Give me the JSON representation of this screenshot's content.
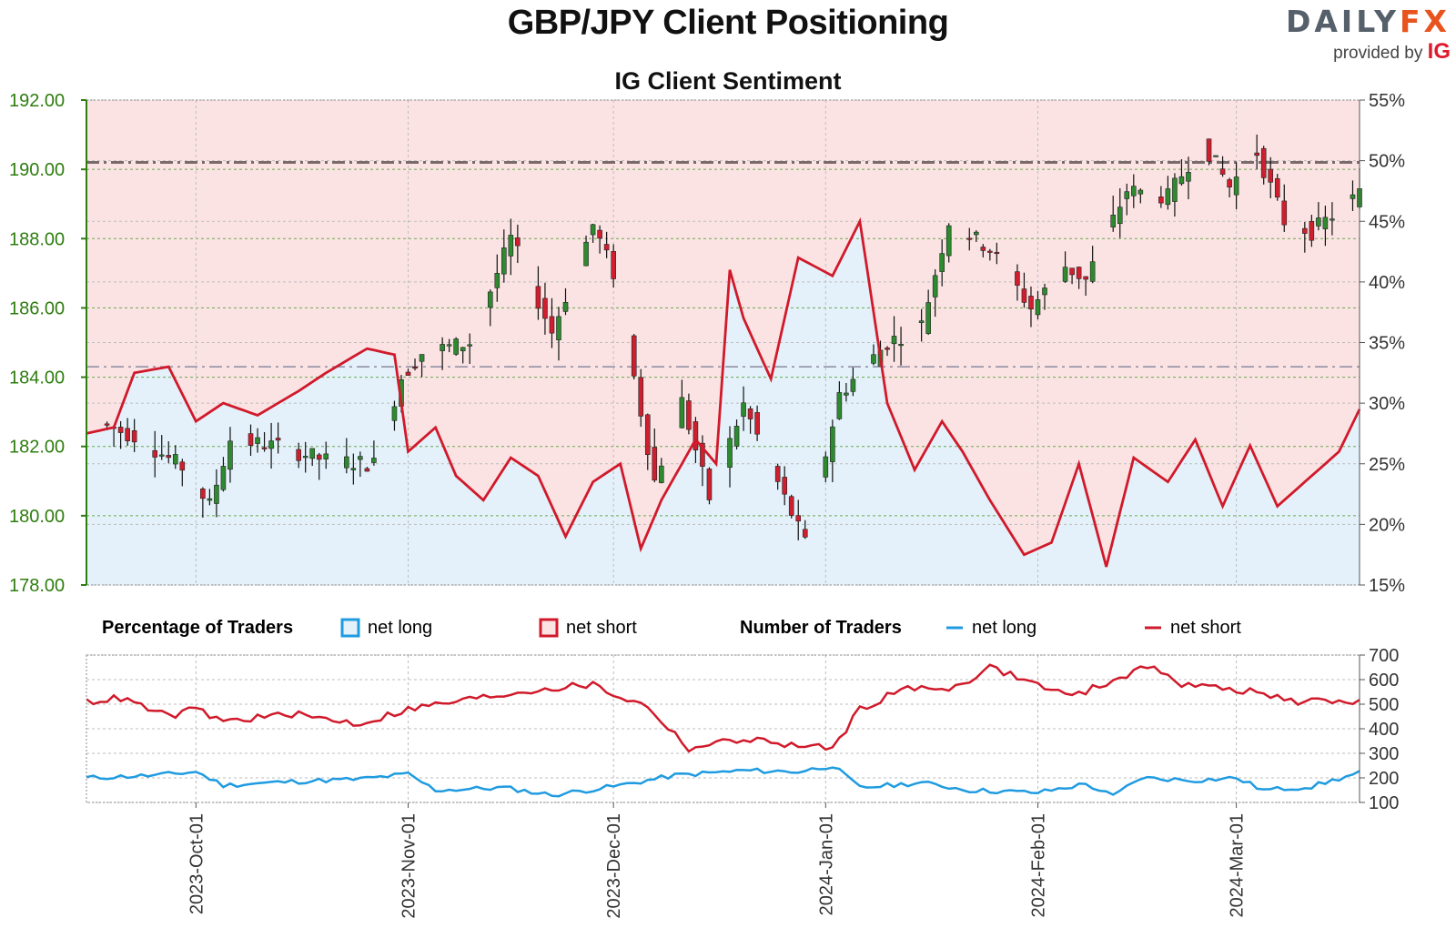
{
  "header": {
    "title": "GBP/JPY Client Positioning",
    "subtitle": "IG Client Sentiment",
    "logo_daily": "DAILY",
    "logo_fx": "FX",
    "logo_provided": "provided by",
    "logo_ig": "IG"
  },
  "legend": {
    "pct_heading": "Percentage of Traders",
    "pct_long": "net long",
    "pct_short": "net short",
    "num_heading": "Number of Traders",
    "num_long": "net long",
    "num_short": "net short"
  },
  "colors": {
    "long_line": "#1f9be0",
    "short_line": "#d01a2b",
    "long_fill": "#e4f1fa",
    "short_fill": "#fbe3e4",
    "bull_candle": "#2e8a2e",
    "bear_candle": "#cf1f2f",
    "price_axis": "#2e7d0f"
  },
  "chart_data": [
    {
      "type": "candlestick",
      "title": "GBP/JPY Client Positioning",
      "x_range": [
        "2023-09-15",
        "2024-03-19"
      ],
      "price_axis": {
        "ticks": [
          "178.00",
          "180.00",
          "182.00",
          "184.00",
          "186.00",
          "188.00",
          "190.00",
          "192.00"
        ],
        "ylim": [
          178,
          192
        ]
      },
      "pct_axis": {
        "ticks": [
          "15%",
          "20%",
          "25%",
          "30%",
          "35%",
          "40%",
          "45%",
          "50%",
          "55%"
        ],
        "ylim": [
          15,
          55
        ]
      },
      "x_ticks": [
        "2023-Oct-01",
        "2023-Nov-01",
        "2023-Dec-01",
        "2024-Jan-01",
        "2024-Feb-01",
        "2024-Mar-01"
      ],
      "reference_lines_price": [
        190.2,
        184.3
      ],
      "ohlc_keypoints": [
        {
          "date": "2023-09-15",
          "close": 182.8
        },
        {
          "date": "2023-09-22",
          "close": 182.3
        },
        {
          "date": "2023-09-29",
          "close": 181.4
        },
        {
          "date": "2023-10-03",
          "close": 180.3
        },
        {
          "date": "2023-10-06",
          "close": 182.2
        },
        {
          "date": "2023-10-13",
          "close": 182.0
        },
        {
          "date": "2023-10-20",
          "close": 181.6
        },
        {
          "date": "2023-10-27",
          "close": 181.5
        },
        {
          "date": "2023-10-31",
          "close": 184.0
        },
        {
          "date": "2023-11-03",
          "close": 184.7
        },
        {
          "date": "2023-11-10",
          "close": 185.0
        },
        {
          "date": "2023-11-16",
          "close": 188.0
        },
        {
          "date": "2023-11-22",
          "close": 185.3
        },
        {
          "date": "2023-11-28",
          "close": 188.4
        },
        {
          "date": "2023-12-01",
          "close": 187.0
        },
        {
          "date": "2023-12-07",
          "close": 181.0
        },
        {
          "date": "2023-12-11",
          "close": 183.3
        },
        {
          "date": "2023-12-15",
          "close": 180.5
        },
        {
          "date": "2023-12-20",
          "close": 183.2
        },
        {
          "date": "2023-12-26",
          "close": 180.5
        },
        {
          "date": "2023-12-29",
          "close": 179.2
        },
        {
          "date": "2024-01-03",
          "close": 183.5
        },
        {
          "date": "2024-01-10",
          "close": 185.0
        },
        {
          "date": "2024-01-15",
          "close": 185.5
        },
        {
          "date": "2024-01-19",
          "close": 188.5
        },
        {
          "date": "2024-01-25",
          "close": 187.7
        },
        {
          "date": "2024-01-31",
          "close": 186.0
        },
        {
          "date": "2024-02-05",
          "close": 187.2
        },
        {
          "date": "2024-02-08",
          "close": 186.8
        },
        {
          "date": "2024-02-14",
          "close": 189.4
        },
        {
          "date": "2024-02-20",
          "close": 189.2
        },
        {
          "date": "2024-02-25",
          "close": 190.8
        },
        {
          "date": "2024-02-29",
          "close": 189.5
        },
        {
          "date": "2024-03-04",
          "close": 190.5
        },
        {
          "date": "2024-03-08",
          "close": 188.5
        },
        {
          "date": "2024-03-12",
          "close": 188.2
        },
        {
          "date": "2024-03-19",
          "close": 189.3
        }
      ],
      "net_short_pct": [
        {
          "date": "2023-09-15",
          "value": 27.5
        },
        {
          "date": "2023-09-19",
          "value": 28.0
        },
        {
          "date": "2023-09-22",
          "value": 32.5
        },
        {
          "date": "2023-09-27",
          "value": 33.0
        },
        {
          "date": "2023-10-01",
          "value": 28.5
        },
        {
          "date": "2023-10-05",
          "value": 30.0
        },
        {
          "date": "2023-10-10",
          "value": 29.0
        },
        {
          "date": "2023-10-16",
          "value": 31.0
        },
        {
          "date": "2023-10-20",
          "value": 32.5
        },
        {
          "date": "2023-10-26",
          "value": 34.5
        },
        {
          "date": "2023-10-30",
          "value": 34.0
        },
        {
          "date": "2023-11-01",
          "value": 26.0
        },
        {
          "date": "2023-11-05",
          "value": 28.0
        },
        {
          "date": "2023-11-08",
          "value": 24.0
        },
        {
          "date": "2023-11-12",
          "value": 22.0
        },
        {
          "date": "2023-11-16",
          "value": 25.5
        },
        {
          "date": "2023-11-20",
          "value": 24.0
        },
        {
          "date": "2023-11-24",
          "value": 19.0
        },
        {
          "date": "2023-11-28",
          "value": 23.5
        },
        {
          "date": "2023-12-02",
          "value": 25.0
        },
        {
          "date": "2023-12-05",
          "value": 18.0
        },
        {
          "date": "2023-12-08",
          "value": 22.0
        },
        {
          "date": "2023-12-13",
          "value": 27.0
        },
        {
          "date": "2023-12-16",
          "value": 25.0
        },
        {
          "date": "2023-12-18",
          "value": 41.0
        },
        {
          "date": "2023-12-20",
          "value": 37.0
        },
        {
          "date": "2023-12-24",
          "value": 32.0
        },
        {
          "date": "2023-12-28",
          "value": 42.0
        },
        {
          "date": "2024-01-02",
          "value": 40.5
        },
        {
          "date": "2024-01-06",
          "value": 45.0
        },
        {
          "date": "2024-01-10",
          "value": 30.0
        },
        {
          "date": "2024-01-14",
          "value": 24.5
        },
        {
          "date": "2024-01-18",
          "value": 28.5
        },
        {
          "date": "2024-01-21",
          "value": 26.0
        },
        {
          "date": "2024-01-25",
          "value": 22.0
        },
        {
          "date": "2024-01-30",
          "value": 17.5
        },
        {
          "date": "2024-02-03",
          "value": 18.5
        },
        {
          "date": "2024-02-07",
          "value": 25.0
        },
        {
          "date": "2024-02-11",
          "value": 16.5
        },
        {
          "date": "2024-02-15",
          "value": 25.5
        },
        {
          "date": "2024-02-20",
          "value": 23.5
        },
        {
          "date": "2024-02-24",
          "value": 27.0
        },
        {
          "date": "2024-02-28",
          "value": 21.5
        },
        {
          "date": "2024-03-03",
          "value": 26.5
        },
        {
          "date": "2024-03-07",
          "value": 21.5
        },
        {
          "date": "2024-03-12",
          "value": 24.0
        },
        {
          "date": "2024-03-16",
          "value": 26.0
        },
        {
          "date": "2024-03-19",
          "value": 29.5
        }
      ]
    },
    {
      "type": "line",
      "title": "Number of Traders",
      "x_range": [
        "2023-09-15",
        "2024-03-19"
      ],
      "y_ticks": [
        "100",
        "200",
        "300",
        "400",
        "500",
        "600",
        "700"
      ],
      "ylim": [
        100,
        700
      ],
      "series": [
        {
          "name": "net long",
          "points": [
            {
              "date": "2023-09-15",
              "value": 200
            },
            {
              "date": "2023-09-25",
              "value": 210
            },
            {
              "date": "2023-10-01",
              "value": 225
            },
            {
              "date": "2023-10-05",
              "value": 170
            },
            {
              "date": "2023-10-15",
              "value": 185
            },
            {
              "date": "2023-10-25",
              "value": 195
            },
            {
              "date": "2023-11-01",
              "value": 215
            },
            {
              "date": "2023-11-05",
              "value": 150
            },
            {
              "date": "2023-11-15",
              "value": 160
            },
            {
              "date": "2023-11-22",
              "value": 130
            },
            {
              "date": "2023-12-01",
              "value": 165
            },
            {
              "date": "2023-12-10",
              "value": 210
            },
            {
              "date": "2023-12-20",
              "value": 230
            },
            {
              "date": "2023-12-28",
              "value": 225
            },
            {
              "date": "2024-01-02",
              "value": 250
            },
            {
              "date": "2024-01-06",
              "value": 160
            },
            {
              "date": "2024-01-15",
              "value": 180
            },
            {
              "date": "2024-01-22",
              "value": 150
            },
            {
              "date": "2024-02-01",
              "value": 140
            },
            {
              "date": "2024-02-08",
              "value": 175
            },
            {
              "date": "2024-02-12",
              "value": 125
            },
            {
              "date": "2024-02-16",
              "value": 200
            },
            {
              "date": "2024-02-24",
              "value": 190
            },
            {
              "date": "2024-03-01",
              "value": 200
            },
            {
              "date": "2024-03-05",
              "value": 150
            },
            {
              "date": "2024-03-12",
              "value": 165
            },
            {
              "date": "2024-03-19",
              "value": 220
            }
          ]
        },
        {
          "name": "net short",
          "points": [
            {
              "date": "2023-09-15",
              "value": 510
            },
            {
              "date": "2023-09-20",
              "value": 525
            },
            {
              "date": "2023-09-27",
              "value": 450
            },
            {
              "date": "2023-10-01",
              "value": 480
            },
            {
              "date": "2023-10-05",
              "value": 430
            },
            {
              "date": "2023-10-15",
              "value": 460
            },
            {
              "date": "2023-10-25",
              "value": 420
            },
            {
              "date": "2023-11-01",
              "value": 480
            },
            {
              "date": "2023-11-10",
              "value": 520
            },
            {
              "date": "2023-11-20",
              "value": 560
            },
            {
              "date": "2023-11-28",
              "value": 580
            },
            {
              "date": "2023-12-01",
              "value": 540
            },
            {
              "date": "2023-12-06",
              "value": 490
            },
            {
              "date": "2023-12-12",
              "value": 320
            },
            {
              "date": "2023-12-20",
              "value": 360
            },
            {
              "date": "2023-12-28",
              "value": 330
            },
            {
              "date": "2024-01-02",
              "value": 320
            },
            {
              "date": "2024-01-06",
              "value": 480
            },
            {
              "date": "2024-01-12",
              "value": 560
            },
            {
              "date": "2024-01-20",
              "value": 570
            },
            {
              "date": "2024-01-25",
              "value": 650
            },
            {
              "date": "2024-02-01",
              "value": 580
            },
            {
              "date": "2024-02-06",
              "value": 530
            },
            {
              "date": "2024-02-14",
              "value": 620
            },
            {
              "date": "2024-02-18",
              "value": 660
            },
            {
              "date": "2024-02-22",
              "value": 580
            },
            {
              "date": "2024-03-01",
              "value": 560
            },
            {
              "date": "2024-03-05",
              "value": 540
            },
            {
              "date": "2024-03-10",
              "value": 510
            },
            {
              "date": "2024-03-19",
              "value": 515
            }
          ]
        }
      ]
    }
  ]
}
